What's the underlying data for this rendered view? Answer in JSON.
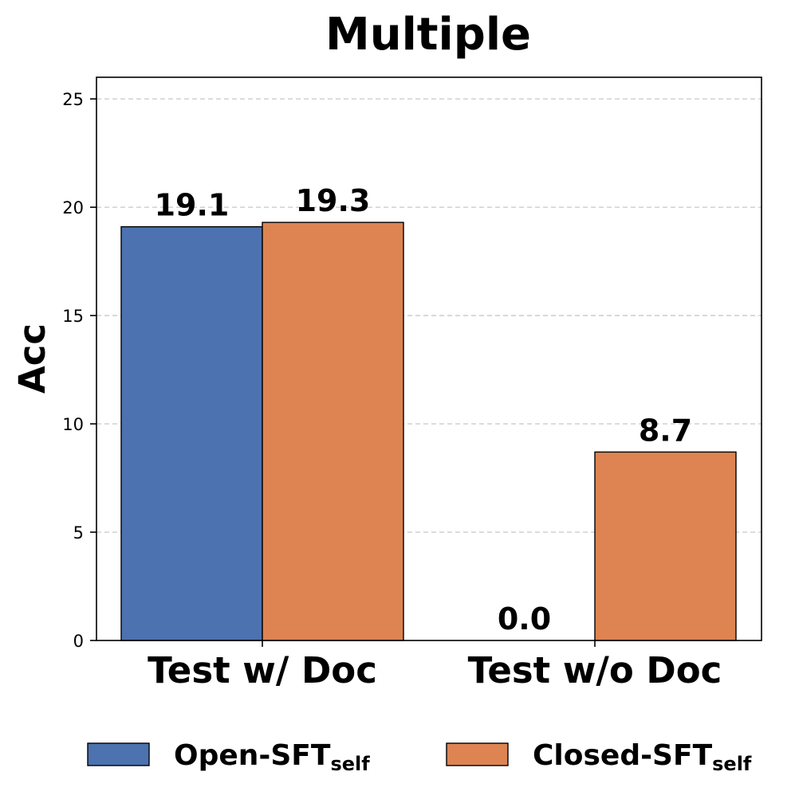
{
  "chart_data": {
    "type": "bar",
    "title": "Multiple",
    "xlabel": "",
    "ylabel": "Acc",
    "ylim": [
      0,
      26
    ],
    "yticks": [
      "0",
      "5",
      "10",
      "15",
      "20",
      "25"
    ],
    "grid": "y-dashed",
    "legend_position": "bottom",
    "categories": [
      "Test w/ Doc",
      "Test w/o Doc"
    ],
    "series": [
      {
        "name": "Open-SFT",
        "name_subscript": "self",
        "color": "#4c72b0",
        "values": [
          19.1,
          0.0
        ],
        "labels": [
          "19.1",
          "0.0"
        ]
      },
      {
        "name": "Closed-SFT",
        "name_subscript": "self",
        "color": "#dd8452",
        "values": [
          19.3,
          8.7
        ],
        "labels": [
          "19.3",
          "8.7"
        ]
      }
    ]
  }
}
